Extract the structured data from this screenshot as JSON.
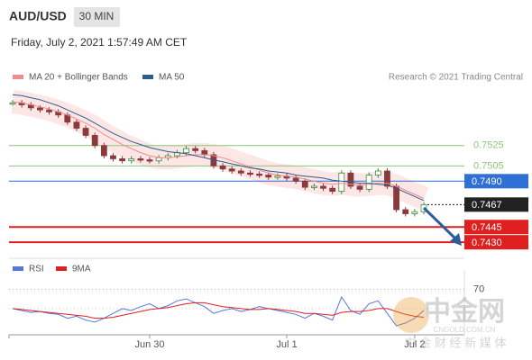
{
  "header": {
    "symbol": "AUD/USD",
    "interval": "30 MIN",
    "timestamp": "Friday, July 2, 2021 1:57:49 AM CET"
  },
  "watermark": {
    "brand": "中金网",
    "site": "CNGOLD.COM.CN",
    "slogan": "中 金 财 经 新 媒 体"
  },
  "chart_data": [
    {
      "type": "candlestick",
      "credit": "Research © 2021 Trading Central",
      "ylim": [
        0.7416,
        0.7584
      ],
      "categories": [
        null,
        null,
        null,
        null,
        null,
        null,
        null,
        null,
        null,
        null,
        null,
        null,
        null,
        null,
        null,
        "Jun 30",
        null,
        null,
        null,
        null,
        null,
        null,
        null,
        null,
        null,
        null,
        null,
        null,
        null,
        null,
        "Jul 1",
        null,
        null,
        null,
        null,
        null,
        null,
        null,
        null,
        null,
        null,
        null,
        null,
        null,
        "Jul 2",
        null
      ],
      "close": [
        0.7567,
        0.7565,
        0.7562,
        0.756,
        0.7558,
        0.7555,
        0.7548,
        0.7542,
        0.7535,
        0.7525,
        0.7515,
        0.7512,
        0.751,
        0.7512,
        0.7511,
        0.751,
        0.7513,
        0.7515,
        0.7518,
        0.7522,
        0.752,
        0.7516,
        0.7505,
        0.7502,
        0.75,
        0.7498,
        0.7497,
        0.7496,
        0.7494,
        0.7495,
        0.7493,
        0.749,
        0.7484,
        0.7485,
        0.7483,
        0.748,
        0.7498,
        0.7485,
        0.7482,
        0.7496,
        0.75,
        0.7485,
        0.7462,
        0.7458,
        0.746,
        0.7467
      ],
      "up_color": "#3a8a3a",
      "down_color": "#8a3a3a",
      "series": [
        {
          "name": "MA 20 + Bollinger Bands",
          "color": "#f08c8c",
          "values": [
            0.7568,
            0.7567,
            0.7565,
            0.7563,
            0.7561,
            0.7558,
            0.7555,
            0.7551,
            0.7547,
            0.7542,
            0.7536,
            0.7531,
            0.7526,
            0.7522,
            0.7518,
            0.7515,
            0.7513,
            0.7513,
            0.7514,
            0.7515,
            0.7516,
            0.7516,
            0.7515,
            0.7513,
            0.751,
            0.7507,
            0.7504,
            0.7501,
            0.7498,
            0.7496,
            0.7495,
            0.7494,
            0.7492,
            0.749,
            0.7488,
            0.7487,
            0.7488,
            0.7487,
            0.7486,
            0.7487,
            0.7488,
            0.7488,
            0.7485,
            0.7481,
            0.7477,
            0.7473
          ]
        },
        {
          "name": "MA 50",
          "color": "#2b5d8c",
          "values": [
            0.7575,
            0.7574,
            0.7572,
            0.757,
            0.7567,
            0.7564,
            0.756,
            0.7556,
            0.7552,
            0.7547,
            0.7542,
            0.7537,
            0.7533,
            0.7529,
            0.7526,
            0.7523,
            0.7521,
            0.7519,
            0.7518,
            0.7517,
            0.7515,
            0.7513,
            0.7511,
            0.7509,
            0.7507,
            0.7505,
            0.7503,
            0.7502,
            0.75,
            0.7499,
            0.7498,
            0.7496,
            0.7495,
            0.7494,
            0.7493,
            0.7491,
            0.749,
            0.7489,
            0.7488,
            0.7488,
            0.7487,
            0.7486,
            0.7483,
            0.7479,
            0.7475,
            0.7471
          ]
        }
      ],
      "levels": [
        {
          "value": 0.7525,
          "color": "#8cc67a",
          "style": "text"
        },
        {
          "value": 0.7505,
          "color": "#8cc67a",
          "style": "text"
        },
        {
          "value": 0.749,
          "label": "0.7490",
          "color": "#2f6fd6",
          "style": "box"
        },
        {
          "value": 0.7467,
          "color": "#222222",
          "style": "box"
        },
        {
          "value": 0.7445,
          "color": "#e02020",
          "style": "box"
        },
        {
          "value": 0.743,
          "label": "0.7430",
          "color": "#e02020",
          "style": "box"
        }
      ]
    },
    {
      "type": "line",
      "ylim": [
        20,
        90
      ],
      "yticks": [
        70
      ],
      "series": [
        {
          "name": "RSI",
          "color": "#5577dd",
          "values": [
            50,
            48,
            46,
            47,
            45,
            44,
            40,
            42,
            38,
            36,
            40,
            45,
            50,
            48,
            52,
            55,
            50,
            53,
            58,
            60,
            56,
            52,
            45,
            48,
            50,
            47,
            49,
            52,
            50,
            48,
            46,
            44,
            40,
            45,
            42,
            38,
            62,
            48,
            44,
            55,
            58,
            45,
            32,
            35,
            40,
            48
          ]
        },
        {
          "name": "9MA",
          "color": "#dd2222",
          "values": [
            50,
            49,
            48,
            47,
            46,
            45,
            44,
            43,
            42,
            40,
            40,
            41,
            43,
            45,
            47,
            49,
            50,
            51,
            53,
            55,
            56,
            56,
            54,
            52,
            51,
            50,
            49,
            49,
            50,
            49,
            48,
            47,
            45,
            45,
            44,
            43,
            46,
            47,
            47,
            48,
            50,
            50,
            47,
            44,
            42,
            41
          ]
        }
      ]
    }
  ]
}
